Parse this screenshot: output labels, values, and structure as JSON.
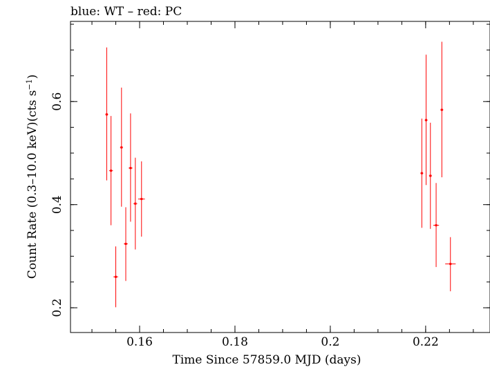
{
  "chart_data": {
    "type": "scatter",
    "title": "blue: WT – red: PC",
    "xlabel": "Time Since 57859.0 MJD (days)",
    "ylabel": "Count Rate (0.3–10.0 keV)(cts s",
    "ylabel_sup": "−1",
    "ylabel_tail": ")",
    "xlim": [
      0.1455,
      0.2335
    ],
    "ylim": [
      0.152,
      0.7555
    ],
    "x_ticks": [
      {
        "v": 0.16,
        "label": "0.16"
      },
      {
        "v": 0.18,
        "label": "0.18"
      },
      {
        "v": 0.2,
        "label": "0.2"
      },
      {
        "v": 0.22,
        "label": "0.22"
      }
    ],
    "y_ticks": [
      {
        "v": 0.2,
        "label": "0.2"
      },
      {
        "v": 0.4,
        "label": "0.4"
      },
      {
        "v": 0.6,
        "label": "0.6"
      }
    ],
    "x_minor_step": 0.005,
    "y_minor_step": 0.05,
    "grid": false,
    "series": [
      {
        "name": "WT",
        "color": "#0000ff",
        "points": []
      },
      {
        "name": "PC",
        "color": "#ff0000",
        "points": [
          {
            "x": 0.1531,
            "y": 0.575,
            "xerr": 0.0003,
            "ylo": 0.447,
            "yhi": 0.705
          },
          {
            "x": 0.154,
            "y": 0.466,
            "xerr": 0.0004,
            "ylo": 0.36,
            "yhi": 0.572
          },
          {
            "x": 0.155,
            "y": 0.26,
            "xerr": 0.0005,
            "ylo": 0.201,
            "yhi": 0.319
          },
          {
            "x": 0.1562,
            "y": 0.511,
            "xerr": 0.0003,
            "ylo": 0.396,
            "yhi": 0.627
          },
          {
            "x": 0.1571,
            "y": 0.324,
            "xerr": 0.0004,
            "ylo": 0.252,
            "yhi": 0.395
          },
          {
            "x": 0.1581,
            "y": 0.471,
            "xerr": 0.0004,
            "ylo": 0.367,
            "yhi": 0.577
          },
          {
            "x": 0.1591,
            "y": 0.402,
            "xerr": 0.0004,
            "ylo": 0.313,
            "yhi": 0.491
          },
          {
            "x": 0.1604,
            "y": 0.411,
            "xerr": 0.0007,
            "ylo": 0.338,
            "yhi": 0.484
          },
          {
            "x": 0.2192,
            "y": 0.461,
            "xerr": 0.0003,
            "ylo": 0.355,
            "yhi": 0.567
          },
          {
            "x": 0.2201,
            "y": 0.564,
            "xerr": 0.0003,
            "ylo": 0.438,
            "yhi": 0.691
          },
          {
            "x": 0.221,
            "y": 0.456,
            "xerr": 0.0003,
            "ylo": 0.353,
            "yhi": 0.559
          },
          {
            "x": 0.2222,
            "y": 0.36,
            "xerr": 0.0006,
            "ylo": 0.279,
            "yhi": 0.442
          },
          {
            "x": 0.2234,
            "y": 0.584,
            "xerr": 0.0003,
            "ylo": 0.453,
            "yhi": 0.716
          },
          {
            "x": 0.2252,
            "y": 0.285,
            "xerr": 0.0011,
            "ylo": 0.232,
            "yhi": 0.337
          }
        ]
      }
    ]
  }
}
